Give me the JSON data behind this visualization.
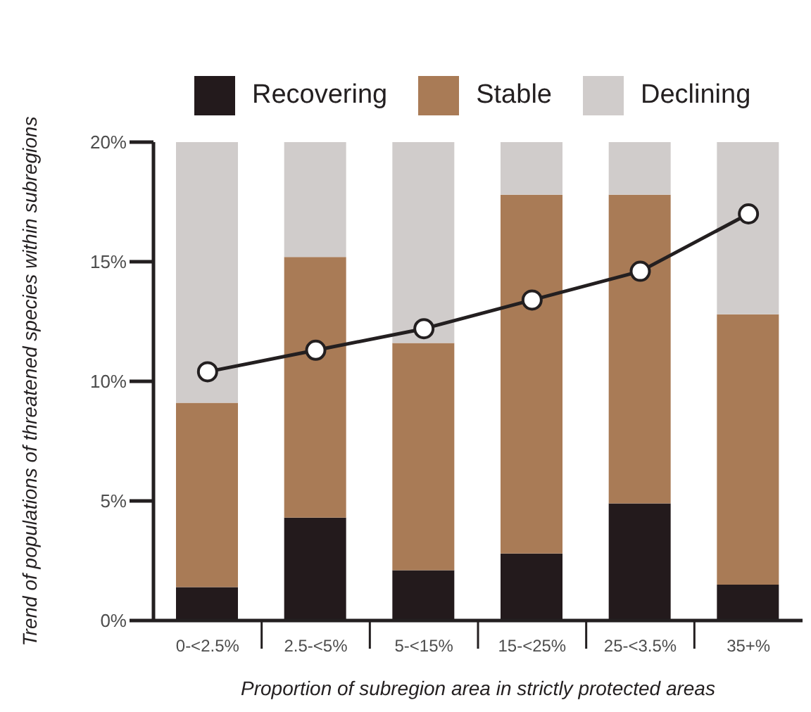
{
  "chart_data": {
    "type": "bar",
    "stacked": true,
    "xlabel": "Proportion of subregion area in strictly protected areas",
    "ylabel": "Trend of populations of threatened species within subregions",
    "categories": [
      "0-<2.5%",
      "2.5-<5%",
      "5-<15%",
      "15-<25%",
      "25-<3.5%",
      "35+%"
    ],
    "series": [
      {
        "name": "Recovering",
        "color": "#231a1c",
        "values": [
          1.4,
          4.3,
          2.1,
          2.8,
          4.9,
          1.5
        ]
      },
      {
        "name": "Stable",
        "color": "#a97b56",
        "values": [
          7.7,
          10.9,
          9.5,
          15.0,
          12.9,
          11.3
        ]
      },
      {
        "name": "Declining",
        "color": "#d0cccb",
        "values": [
          10.9,
          4.8,
          8.4,
          2.2,
          2.2,
          7.2
        ]
      },
      {
        "type": "line",
        "color": "#231f20",
        "marker": "circle",
        "line_style": "solid",
        "values": [
          10.4,
          11.3,
          12.2,
          13.4,
          14.6,
          17.0
        ]
      }
    ],
    "ylim": [
      0,
      20
    ],
    "yticks": [
      {
        "value": 0,
        "label": "0%"
      },
      {
        "value": 5,
        "label": "5%"
      },
      {
        "value": 10,
        "label": "10%"
      },
      {
        "value": 15,
        "label": "15%"
      },
      {
        "value": 20,
        "label": "20%"
      }
    ],
    "legend": "top"
  }
}
